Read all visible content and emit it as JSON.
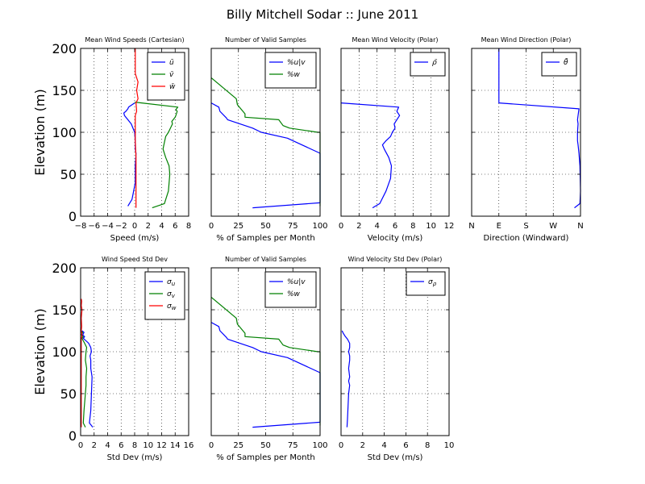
{
  "figure": {
    "title": "Billy Mitchell Sodar :: June 2011"
  },
  "chart_data": [
    {
      "type": "line",
      "title": "Mean Wind Speeds (Cartesian)",
      "xlabel": "Speed (m/s)",
      "ylabel": "Elevation (m)",
      "xlim": [
        -8,
        8
      ],
      "ylim": [
        0,
        200
      ],
      "xticks": [
        -8,
        -6,
        -4,
        -2,
        0,
        2,
        4,
        6,
        8
      ],
      "xtick_labels": [
        "−8",
        "−6",
        "−4",
        "−2",
        "0",
        "2",
        "4",
        "6",
        "8"
      ],
      "yticks": [
        0,
        50,
        100,
        150,
        200
      ],
      "grid": true,
      "legend": "top-right",
      "series": [
        {
          "name": "ū",
          "color": "#0000ff",
          "x": [
            -1,
            -0.4,
            0.1,
            0.1,
            0.2,
            0.1,
            0.1,
            0,
            -0.5,
            -1,
            -1.5,
            -1.6,
            -1.3,
            -1,
            -0.9,
            0
          ],
          "y": [
            12,
            20,
            40,
            60,
            75,
            80,
            90,
            100,
            110,
            115,
            120,
            123,
            125,
            128,
            130,
            135
          ]
        },
        {
          "name": "v̄",
          "color": "#008000",
          "x": [
            2.6,
            4.4,
            5,
            5.2,
            5.1,
            4.6,
            4.2,
            4.4,
            4.6,
            5,
            5.6,
            5.5,
            6,
            6.1,
            6.3,
            6.1,
            6.4,
            0
          ],
          "y": [
            10,
            15,
            30,
            50,
            60,
            70,
            80,
            88,
            95,
            100,
            110,
            113,
            118,
            120,
            125,
            127,
            130,
            136
          ]
        },
        {
          "name": "w̄",
          "color": "#ff0000",
          "x": [
            0.2,
            0.2,
            0.2,
            0.2,
            0.1,
            0.1,
            0.1,
            0.1,
            0.3,
            0.2,
            0.5,
            0.3,
            0.5,
            0.3,
            0.1,
            0.1,
            0.1
          ],
          "y": [
            10,
            30,
            50,
            70,
            90,
            100,
            110,
            120,
            125,
            135,
            140,
            150,
            160,
            165,
            170,
            180,
            200
          ]
        }
      ]
    },
    {
      "type": "line",
      "title": "Number of Valid Samples",
      "xlabel": "% of Samples per Month",
      "ylabel": "",
      "xlim": [
        0,
        100
      ],
      "ylim": [
        0,
        200
      ],
      "xticks": [
        0,
        25,
        50,
        75,
        100
      ],
      "xtick_labels": [
        "0",
        "25",
        "50",
        "75",
        "100"
      ],
      "yticks": [],
      "grid": true,
      "legend": "top-right",
      "series": [
        {
          "name": "%u|v",
          "color": "#0000ff",
          "x": [
            38,
            100,
            100,
            100,
            70,
            46,
            38,
            15,
            14,
            8,
            7,
            0
          ],
          "y": [
            10,
            16,
            75,
            75,
            93,
            100,
            105,
            115,
            117,
            125,
            130,
            135
          ]
        },
        {
          "name": "%w",
          "color": "#008000",
          "x": [
            100,
            100,
            100,
            98,
            72,
            66,
            62,
            31,
            31,
            24,
            23,
            0
          ],
          "y": [
            12,
            80,
            100,
            100,
            105,
            108,
            115,
            118,
            122,
            133,
            140,
            165
          ]
        }
      ]
    },
    {
      "type": "line",
      "title": "Mean Wind Velocity (Polar)",
      "xlabel": "Velocity (m/s)",
      "ylabel": "",
      "xlim": [
        0,
        12
      ],
      "ylim": [
        0,
        200
      ],
      "xticks": [
        0,
        2,
        4,
        6,
        8,
        10,
        12
      ],
      "xtick_labels": [
        "0",
        "2",
        "4",
        "6",
        "8",
        "10",
        "12"
      ],
      "yticks": [],
      "grid": true,
      "legend": "top-right",
      "series": [
        {
          "name": "ρ̄",
          "color": "#0000ff",
          "x": [
            3.5,
            4.3,
            5,
            5.5,
            5.6,
            5.3,
            4.8,
            4.6,
            5,
            5.5,
            5.7,
            6,
            5.9,
            6.2,
            6.5,
            6.2,
            6.4,
            0
          ],
          "y": [
            10,
            15,
            30,
            45,
            60,
            70,
            80,
            85,
            90,
            95,
            100,
            105,
            110,
            115,
            120,
            125,
            130,
            135
          ]
        }
      ]
    },
    {
      "type": "line",
      "title": "Mean Wind Direction (Polar)",
      "xlabel": "Direction (Windward)",
      "ylabel": "",
      "xlim": [
        0,
        360
      ],
      "ylim": [
        0,
        200
      ],
      "xticks": [
        0,
        90,
        180,
        270,
        360
      ],
      "xtick_labels": [
        "N",
        "E",
        "S",
        "W",
        "N"
      ],
      "yticks": [],
      "grid": true,
      "legend": "top-right",
      "series": [
        {
          "name": "θ̄",
          "color": "#0000ff",
          "x": [
            340,
            358,
            360,
            358,
            355,
            352,
            350,
            350,
            352,
            350,
            352,
            355,
            90,
            90,
            90
          ],
          "y": [
            10,
            15,
            30,
            60,
            75,
            85,
            90,
            100,
            110,
            115,
            120,
            128,
            135,
            160,
            200
          ]
        }
      ]
    },
    {
      "type": "line",
      "title": "Wind Speed Std Dev",
      "xlabel": "Std Dev (m/s)",
      "ylabel": "Elevation (m)",
      "xlim": [
        0,
        16
      ],
      "ylim": [
        0,
        200
      ],
      "xticks": [
        0,
        2,
        4,
        6,
        8,
        10,
        12,
        14,
        16
      ],
      "xtick_labels": [
        "0",
        "2",
        "4",
        "6",
        "8",
        "10",
        "12",
        "14",
        "16"
      ],
      "yticks": [
        0,
        50,
        100,
        150,
        200
      ],
      "grid": true,
      "legend": "top-right",
      "series": [
        {
          "name": "σu",
          "color": "#0000ff",
          "x": [
            1.8,
            1.3,
            1.5,
            1.6,
            1.7,
            1.5,
            1.5,
            1.4,
            1.6,
            1.5,
            1.2,
            0.8,
            0.4,
            0.6,
            0.3,
            0.5,
            0.2
          ],
          "y": [
            10,
            15,
            30,
            50,
            70,
            80,
            90,
            95,
            100,
            105,
            110,
            113,
            116,
            118,
            120,
            123,
            125
          ]
        },
        {
          "name": "σv",
          "color": "#008000",
          "x": [
            0.7,
            0.4,
            0.5,
            0.7,
            0.8,
            0.8,
            0.9,
            0.7,
            0.8,
            0.9,
            0.6,
            0.4,
            0.2,
            0.4,
            0.1,
            0.3,
            0
          ],
          "y": [
            10,
            15,
            30,
            50,
            60,
            70,
            80,
            90,
            100,
            105,
            110,
            113,
            116,
            118,
            120,
            123,
            125
          ]
        },
        {
          "name": "σw",
          "color": "#ff0000",
          "x": [
            0.1,
            0.1,
            0.1,
            0.1,
            0.1,
            0.2,
            0.1,
            0.15,
            0.1,
            0.2,
            0.1,
            0.15,
            0.1
          ],
          "y": [
            10,
            50,
            80,
            100,
            115,
            120,
            125,
            130,
            140,
            150,
            155,
            160,
            163
          ]
        }
      ]
    },
    {
      "type": "line",
      "title": "Number of Valid Samples",
      "xlabel": "% of Samples per Month",
      "ylabel": "",
      "xlim": [
        0,
        100
      ],
      "ylim": [
        0,
        200
      ],
      "xticks": [
        0,
        25,
        50,
        75,
        100
      ],
      "xtick_labels": [
        "0",
        "25",
        "50",
        "75",
        "100"
      ],
      "yticks": [],
      "grid": true,
      "legend": "top-right",
      "series": [
        {
          "name": "%u|v",
          "color": "#0000ff",
          "x": [
            38,
            100,
            100,
            100,
            70,
            46,
            38,
            15,
            14,
            8,
            7,
            0
          ],
          "y": [
            10,
            16,
            75,
            75,
            93,
            100,
            105,
            115,
            117,
            125,
            130,
            135
          ]
        },
        {
          "name": "%w",
          "color": "#008000",
          "x": [
            100,
            100,
            100,
            98,
            72,
            66,
            62,
            31,
            31,
            24,
            23,
            0
          ],
          "y": [
            12,
            80,
            100,
            100,
            105,
            108,
            115,
            118,
            122,
            133,
            140,
            165
          ]
        }
      ]
    },
    {
      "type": "line",
      "title": "Wind Velocity Std Dev (Polar)",
      "xlabel": "Std Dev (m/s)",
      "ylabel": "",
      "xlim": [
        0,
        10
      ],
      "ylim": [
        0,
        200
      ],
      "xticks": [
        0,
        2,
        4,
        6,
        8,
        10
      ],
      "xtick_labels": [
        "0",
        "2",
        "4",
        "6",
        "8",
        "10"
      ],
      "yticks": [],
      "grid": true,
      "legend": "top-right",
      "series": [
        {
          "name": "σρ",
          "color": "#0000ff",
          "x": [
            0.55,
            0.6,
            0.65,
            0.7,
            0.8,
            0.7,
            0.8,
            0.7,
            0.8,
            0.8,
            0.7,
            0.8,
            0.8,
            0.6,
            0.4,
            0.2,
            0.1
          ],
          "y": [
            10,
            20,
            35,
            50,
            60,
            65,
            70,
            80,
            90,
            95,
            100,
            105,
            110,
            115,
            118,
            122,
            125
          ]
        }
      ]
    }
  ]
}
